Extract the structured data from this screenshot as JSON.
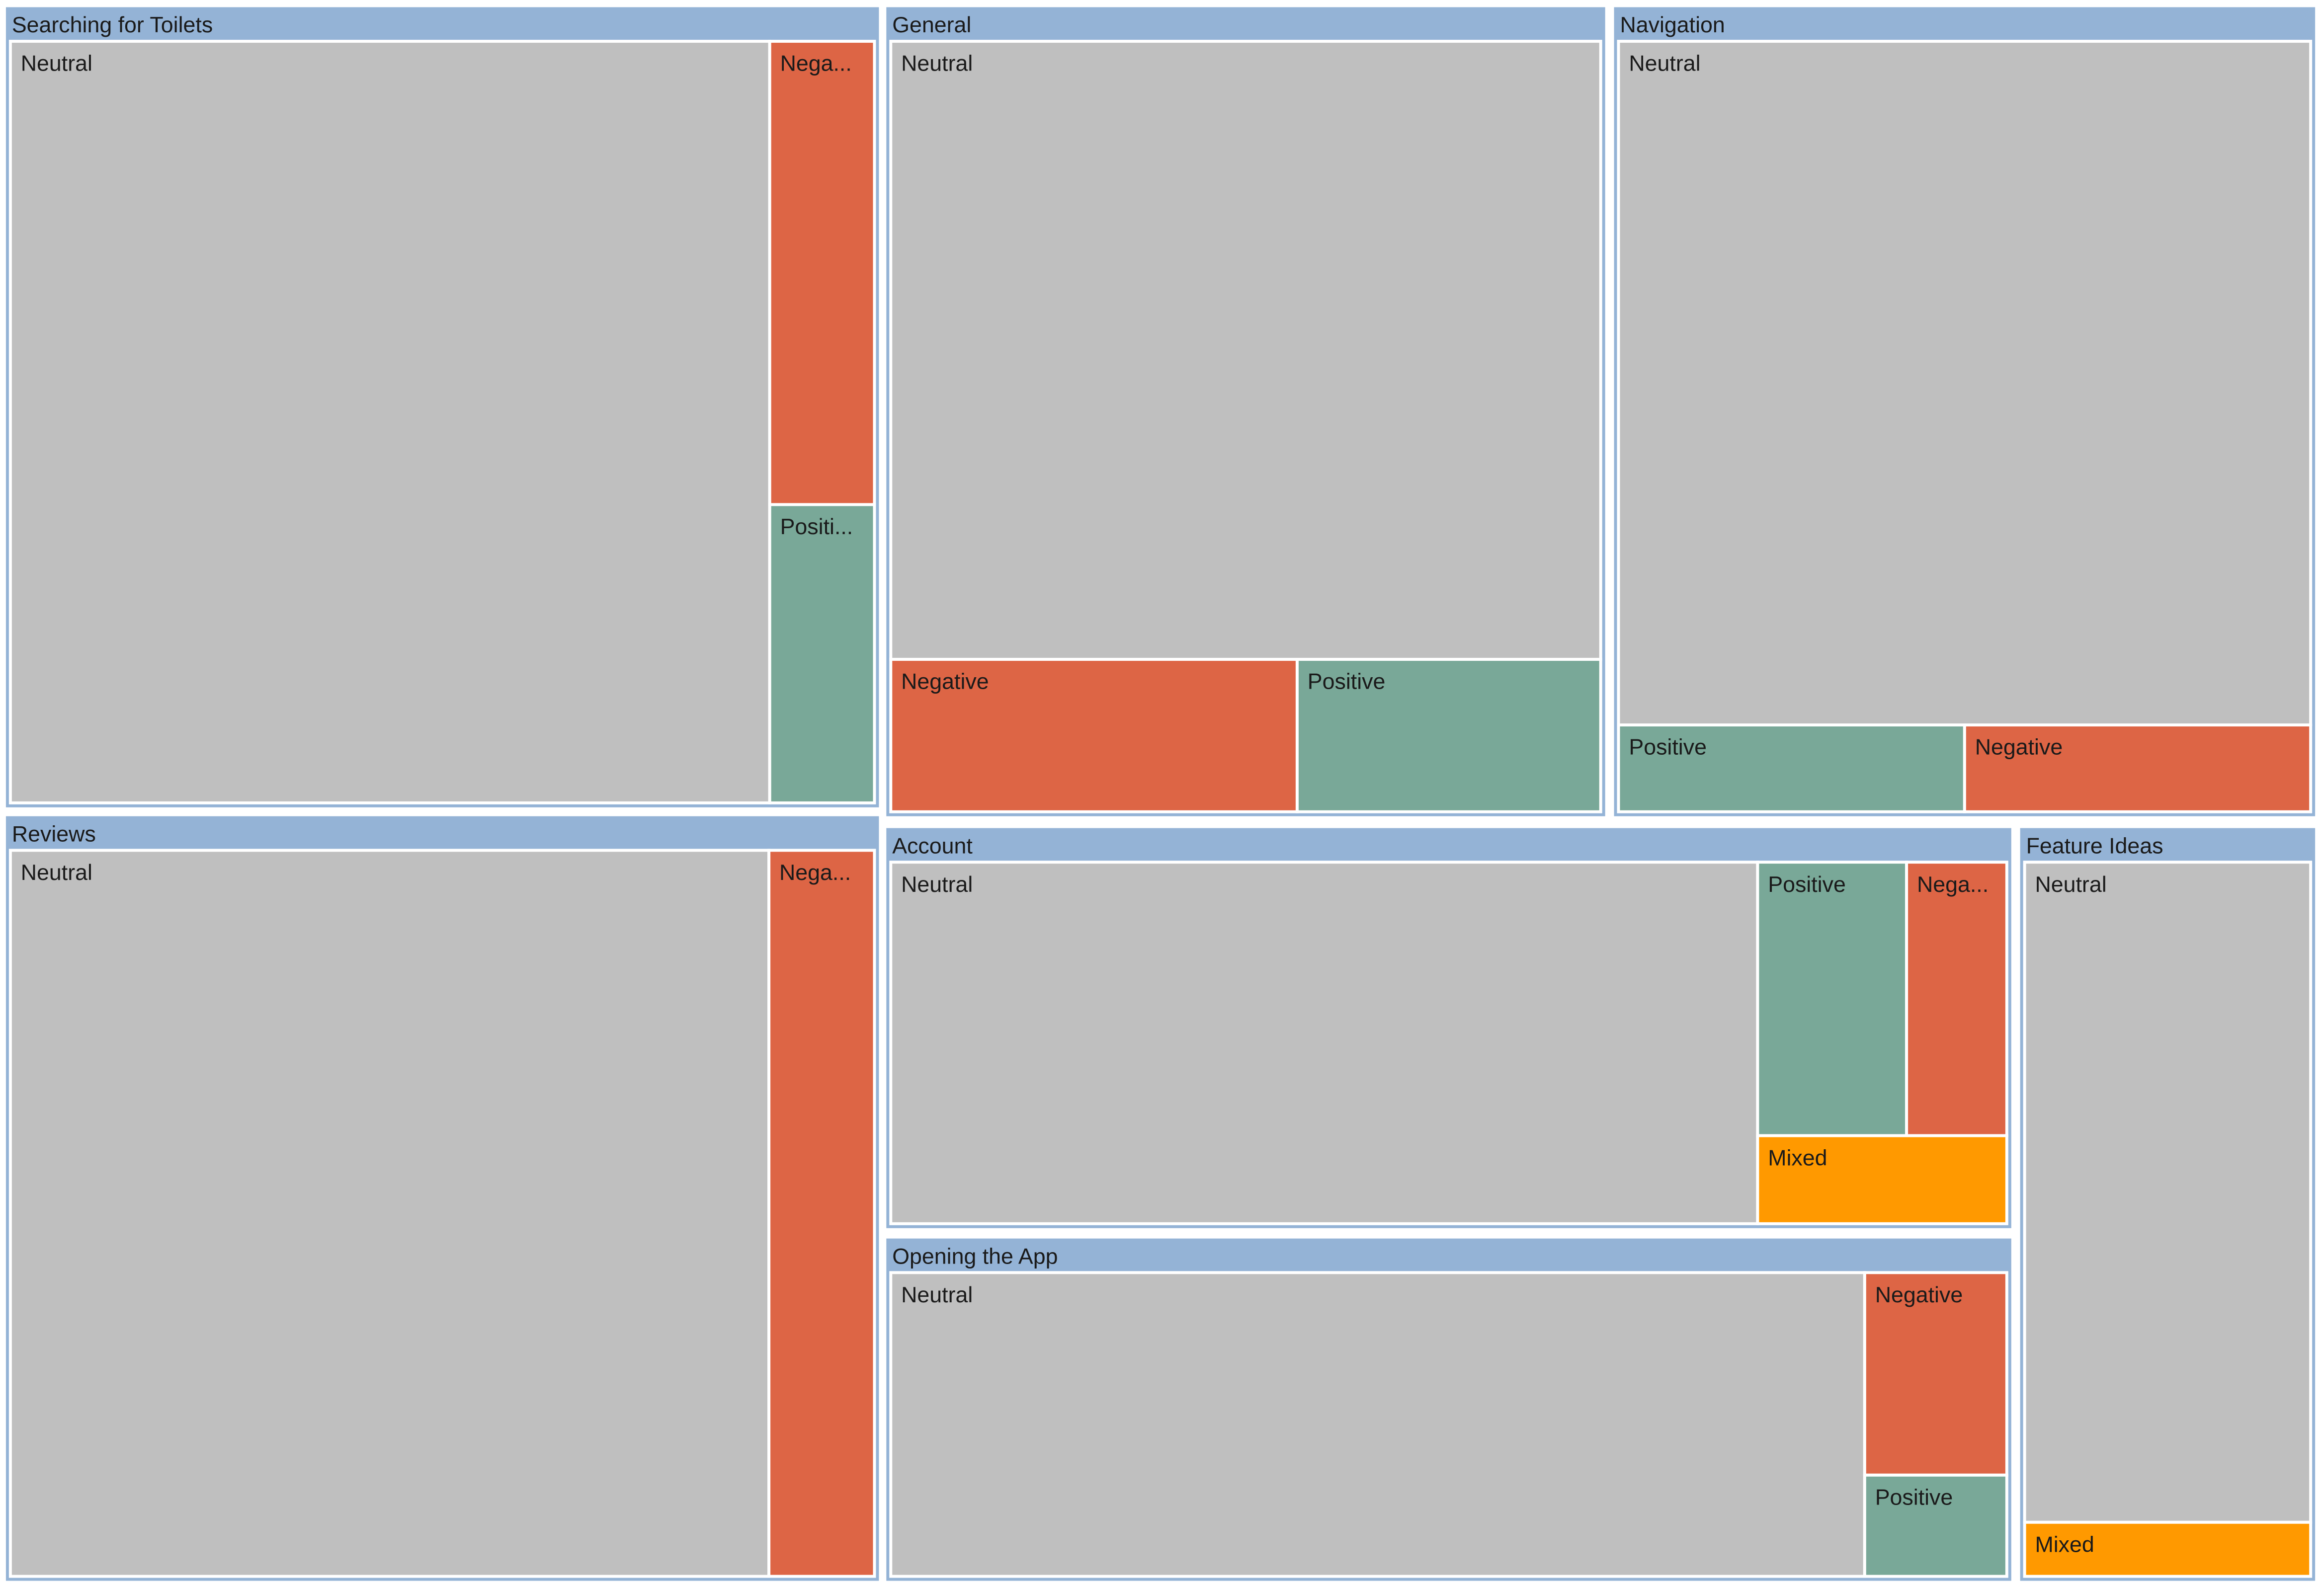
{
  "chart_data": {
    "type": "treemap",
    "title": "",
    "colors": {
      "parent_fill": "#94b3d6",
      "border": "#ffffff",
      "label_text": "#1a1a1a",
      "Neutral": "#bfbfbf",
      "Negative": "#dd6545",
      "Positive": "#79a898",
      "Mixed": "#ff9900"
    },
    "groups": [
      {
        "name": "Searching for Toilets",
        "children": [
          {
            "name": "Neutral",
            "display": "Neutral",
            "value": 870
          },
          {
            "name": "Negative",
            "display": "Nega...",
            "value": 73
          },
          {
            "name": "Positive",
            "display": "Positi...",
            "value": 47
          }
        ]
      },
      {
        "name": "General",
        "children": [
          {
            "name": "Neutral",
            "display": "Neutral",
            "value": 588
          },
          {
            "name": "Negative",
            "display": "Negative",
            "value": 83
          },
          {
            "name": "Positive",
            "display": "Positive",
            "value": 62
          }
        ]
      },
      {
        "name": "Navigation",
        "children": [
          {
            "name": "Neutral",
            "display": "Neutral",
            "value": 630
          },
          {
            "name": "Positive",
            "display": "Positive",
            "value": 40
          },
          {
            "name": "Negative",
            "display": "Negative",
            "value": 40
          }
        ]
      },
      {
        "name": "Reviews",
        "children": [
          {
            "name": "Neutral",
            "display": "Neutral",
            "value": 690
          },
          {
            "name": "Negative",
            "display": "Nega...",
            "value": 96
          }
        ]
      },
      {
        "name": "Account",
        "children": [
          {
            "name": "Neutral",
            "display": "Neutral",
            "value": 400
          },
          {
            "name": "Positive",
            "display": "Positive",
            "value": 52
          },
          {
            "name": "Negative",
            "display": "Nega...",
            "value": 35
          },
          {
            "name": "Mixed",
            "display": "Mixed",
            "value": 28
          }
        ]
      },
      {
        "name": "Opening the App",
        "children": [
          {
            "name": "Neutral",
            "display": "Neutral",
            "value": 370
          },
          {
            "name": "Negative",
            "display": "Negative",
            "value": 36
          },
          {
            "name": "Positive",
            "display": "Positive",
            "value": 18
          }
        ]
      },
      {
        "name": "Feature Ideas",
        "children": [
          {
            "name": "Neutral",
            "display": "Neutral",
            "value": 232
          },
          {
            "name": "Mixed",
            "display": "Mixed",
            "value": 19
          }
        ]
      }
    ]
  }
}
